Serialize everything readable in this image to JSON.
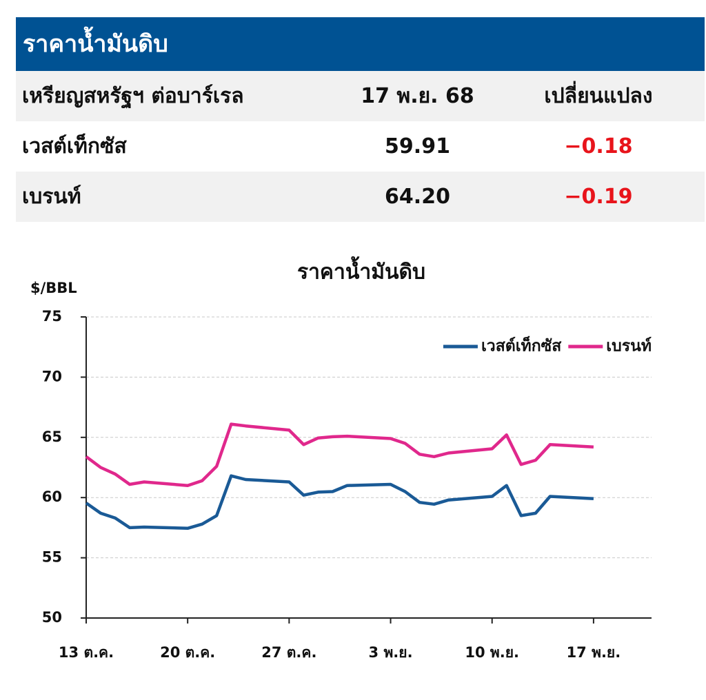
{
  "table": {
    "title": "ราคาน้ำมันดิบ",
    "header": [
      "เหรียญสหรัฐฯ ต่อบาร์เรล",
      "17 พ.ย. 68",
      "เปลี่ยนแปลง"
    ],
    "rows": [
      [
        "เวสต์เท็กซัส",
        "59.91",
        "−0.18"
      ],
      [
        "เบรนท์",
        "64.20",
        "−0.19"
      ]
    ]
  },
  "chart_data": {
    "type": "line",
    "title": "ราคาน้ำมันดิบ",
    "y_label": "$/BBL",
    "x": [
      "13 ต.ค.",
      "14 ต.ค.",
      "15 ต.ค.",
      "16 ต.ค.",
      "17 ต.ค.",
      "20 ต.ค.",
      "21 ต.ค.",
      "22 ต.ค.",
      "23 ต.ค.",
      "24 ต.ค.",
      "27 ต.ค.",
      "28 ต.ค.",
      "29 ต.ค.",
      "30 ต.ค.",
      "31 ต.ค.",
      "3 พ.ย.",
      "4 พ.ย.",
      "5 พ.ย.",
      "6 พ.ย.",
      "7 พ.ย.",
      "10 พ.ย.",
      "11 พ.ย.",
      "12 พ.ย.",
      "13 พ.ย.",
      "14 พ.ย.",
      "17 พ.ย."
    ],
    "series": [
      {
        "name": "เวสต์เท็กซัส",
        "color": "#1a5a96",
        "values": [
          59.55,
          58.7,
          58.3,
          57.5,
          57.55,
          57.45,
          57.8,
          58.5,
          61.8,
          61.5,
          61.3,
          60.2,
          60.45,
          60.5,
          61.0,
          61.1,
          60.5,
          59.6,
          59.45,
          59.8,
          60.1,
          61.0,
          58.5,
          58.7,
          60.1,
          59.91
        ]
      },
      {
        "name": "เบรนท์",
        "color": "#e0288c",
        "values": [
          63.4,
          62.5,
          61.95,
          61.1,
          61.3,
          61.0,
          61.4,
          62.6,
          66.1,
          65.95,
          65.6,
          64.4,
          64.95,
          65.05,
          65.1,
          64.9,
          64.5,
          63.6,
          63.4,
          63.7,
          64.05,
          65.2,
          62.75,
          63.1,
          64.4,
          64.2
        ]
      }
    ],
    "xlim": [
      "13 ต.ค.",
      "21 พ.ย."
    ],
    "xticks": [
      "13 ต.ค.",
      "20 ต.ค.",
      "27 ต.ค.",
      "3 พ.ย.",
      "10 พ.ย.",
      "17 พ.ย."
    ],
    "ylim": [
      50,
      75
    ],
    "yticks": [
      50,
      55,
      60,
      65,
      70,
      75
    ],
    "grid": true,
    "legend": "top-right"
  }
}
